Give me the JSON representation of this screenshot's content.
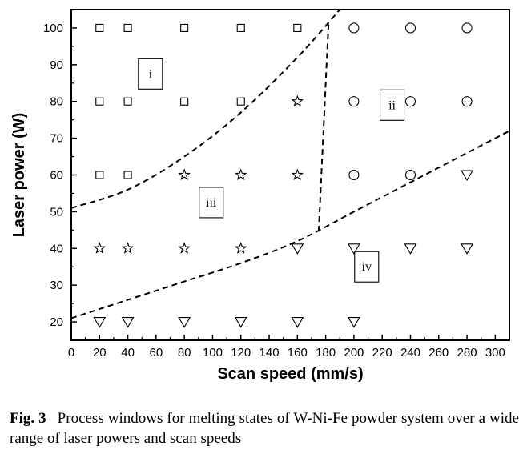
{
  "chart_data": {
    "type": "scatter",
    "xlabel": "Scan speed (mm/s)",
    "ylabel": "Laser power (W)",
    "xlim": [
      0,
      310
    ],
    "ylim": [
      15,
      105
    ],
    "xticks": [
      0,
      20,
      40,
      60,
      80,
      100,
      120,
      140,
      160,
      180,
      200,
      220,
      240,
      260,
      280,
      300
    ],
    "yticks": [
      20,
      30,
      40,
      50,
      60,
      70,
      80,
      90,
      100
    ],
    "grid": false,
    "series": [
      {
        "marker": "square",
        "points": [
          [
            20,
            100
          ],
          [
            40,
            100
          ],
          [
            80,
            100
          ],
          [
            120,
            100
          ],
          [
            160,
            100
          ],
          [
            20,
            80
          ],
          [
            40,
            80
          ],
          [
            80,
            80
          ],
          [
            120,
            80
          ],
          [
            20,
            60
          ],
          [
            40,
            60
          ]
        ]
      },
      {
        "marker": "circle",
        "points": [
          [
            200,
            100
          ],
          [
            240,
            100
          ],
          [
            280,
            100
          ],
          [
            200,
            80
          ],
          [
            240,
            80
          ],
          [
            280,
            80
          ],
          [
            200,
            60
          ],
          [
            240,
            60
          ]
        ]
      },
      {
        "marker": "star",
        "points": [
          [
            160,
            80
          ],
          [
            80,
            60
          ],
          [
            120,
            60
          ],
          [
            160,
            60
          ],
          [
            20,
            40
          ],
          [
            40,
            40
          ],
          [
            80,
            40
          ],
          [
            120,
            40
          ]
        ]
      },
      {
        "marker": "triangle-down",
        "points": [
          [
            280,
            60
          ],
          [
            160,
            40
          ],
          [
            200,
            40
          ],
          [
            240,
            40
          ],
          [
            280,
            40
          ],
          [
            20,
            20
          ],
          [
            40,
            20
          ],
          [
            80,
            20
          ],
          [
            120,
            20
          ],
          [
            160,
            20
          ],
          [
            200,
            20
          ]
        ]
      }
    ],
    "boundaries": [
      {
        "style": "dashed",
        "points": [
          [
            0,
            51
          ],
          [
            40,
            56
          ],
          [
            80,
            65
          ],
          [
            120,
            77
          ],
          [
            160,
            92
          ],
          [
            190,
            105
          ]
        ]
      },
      {
        "style": "dashed",
        "points": [
          [
            182,
            101
          ],
          [
            175,
            44
          ]
        ]
      },
      {
        "style": "dashed",
        "points": [
          [
            0,
            21
          ],
          [
            40,
            26
          ],
          [
            80,
            31
          ],
          [
            120,
            36
          ],
          [
            160,
            42
          ],
          [
            200,
            50
          ],
          [
            240,
            58
          ],
          [
            280,
            66
          ],
          [
            310,
            72
          ]
        ]
      }
    ],
    "region_labels": [
      {
        "text": "i",
        "x": 56,
        "y": 87.5
      },
      {
        "text": "ii",
        "x": 227,
        "y": 79
      },
      {
        "text": "iii",
        "x": 99,
        "y": 52.5
      },
      {
        "text": "iv",
        "x": 209,
        "y": 35
      }
    ]
  },
  "caption": {
    "label": "Fig. 3",
    "text": "Process windows for melting states of W-Ni-Fe powder system over a wide range of laser powers and scan speeds"
  }
}
